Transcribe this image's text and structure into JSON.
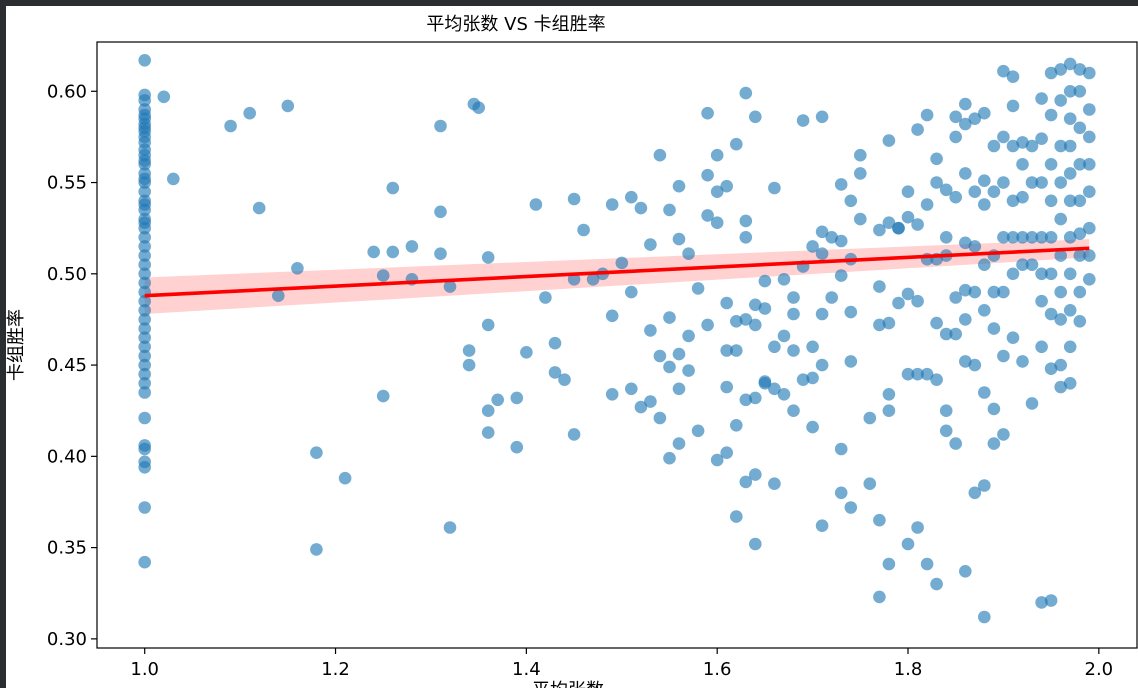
{
  "colors": {
    "points": "#1f77b4",
    "regression_line": "#ff0000",
    "confidence_band": "#ffb3b3",
    "axes": "#000000",
    "window_bg": "#2b2d30"
  },
  "chart_data": {
    "type": "scatter",
    "title": "平均张数 VS 卡组胜率",
    "xlabel": "平均张数",
    "ylabel": "卡组胜率",
    "xlim": [
      0.95,
      2.04
    ],
    "ylim": [
      0.295,
      0.627
    ],
    "x_ticks": [
      "1.0",
      "1.2",
      "1.4",
      "1.6",
      "1.8",
      "2.0"
    ],
    "y_ticks": [
      "0.30",
      "0.35",
      "0.40",
      "0.45",
      "0.50",
      "0.55",
      "0.60"
    ],
    "grid": false,
    "legend": "none",
    "regression": {
      "x": [
        1.0,
        1.99
      ],
      "y": [
        0.488,
        0.514
      ],
      "ci_lower": [
        0.478,
        0.509
      ],
      "ci_upper": [
        0.498,
        0.519
      ]
    },
    "points": {
      "x": [
        1.0,
        1.0,
        1.0,
        1.0,
        1.0,
        1.0,
        1.0,
        1.0,
        1.0,
        1.0,
        1.0,
        1.0,
        1.0,
        1.0,
        1.0,
        1.0,
        1.0,
        1.0,
        1.0,
        1.0,
        1.0,
        1.0,
        1.0,
        1.0,
        1.0,
        1.0,
        1.0,
        1.0,
        1.0,
        1.0,
        1.0,
        1.0,
        1.0,
        1.0,
        1.0,
        1.0,
        1.0,
        1.0,
        1.0,
        1.0,
        1.0,
        1.0,
        1.0,
        1.0,
        1.0,
        1.0,
        1.0,
        1.0,
        1.0,
        1.0,
        1.02,
        1.03,
        1.09,
        1.11,
        1.12,
        1.14,
        1.15,
        1.16,
        1.18,
        1.18,
        1.21,
        1.24,
        1.25,
        1.25,
        1.26,
        1.26,
        1.28,
        1.28,
        1.31,
        1.31,
        1.31,
        1.32,
        1.32,
        1.34,
        1.34,
        1.345,
        1.35,
        1.36,
        1.36,
        1.36,
        1.36,
        1.37,
        1.39,
        1.39,
        1.4,
        1.41,
        1.42,
        1.43,
        1.43,
        1.44,
        1.45,
        1.45,
        1.45,
        1.46,
        1.47,
        1.48,
        1.49,
        1.49,
        1.49,
        1.5,
        1.51,
        1.51,
        1.51,
        1.52,
        1.52,
        1.53,
        1.53,
        1.53,
        1.54,
        1.54,
        1.54,
        1.55,
        1.55,
        1.55,
        1.55,
        1.56,
        1.56,
        1.56,
        1.56,
        1.56,
        1.57,
        1.57,
        1.57,
        1.58,
        1.58,
        1.59,
        1.59,
        1.59,
        1.59,
        1.6,
        1.6,
        1.6,
        1.6,
        1.61,
        1.61,
        1.61,
        1.61,
        1.61,
        1.62,
        1.62,
        1.62,
        1.62,
        1.62,
        1.63,
        1.63,
        1.63,
        1.63,
        1.63,
        1.63,
        1.64,
        1.64,
        1.64,
        1.64,
        1.64,
        1.64,
        1.65,
        1.65,
        1.65,
        1.65,
        1.66,
        1.66,
        1.66,
        1.66,
        1.67,
        1.67,
        1.67,
        1.68,
        1.68,
        1.68,
        1.68,
        1.69,
        1.69,
        1.69,
        1.7,
        1.7,
        1.7,
        1.7,
        1.71,
        1.71,
        1.71,
        1.71,
        1.71,
        1.71,
        1.72,
        1.72,
        1.73,
        1.73,
        1.73,
        1.73,
        1.73,
        1.74,
        1.74,
        1.74,
        1.74,
        1.74,
        1.75,
        1.75,
        1.75,
        1.76,
        1.76,
        1.77,
        1.77,
        1.77,
        1.77,
        1.77,
        1.78,
        1.78,
        1.78,
        1.78,
        1.78,
        1.78,
        1.79,
        1.79,
        1.79,
        1.8,
        1.8,
        1.8,
        1.8,
        1.8,
        1.81,
        1.81,
        1.81,
        1.81,
        1.81,
        1.82,
        1.82,
        1.82,
        1.82,
        1.82,
        1.83,
        1.83,
        1.83,
        1.83,
        1.83,
        1.83,
        1.84,
        1.84,
        1.84,
        1.84,
        1.84,
        1.84,
        1.85,
        1.85,
        1.85,
        1.85,
        1.85,
        1.85,
        1.86,
        1.86,
        1.86,
        1.86,
        1.86,
        1.86,
        1.86,
        1.86,
        1.87,
        1.87,
        1.87,
        1.87,
        1.87,
        1.87,
        1.88,
        1.88,
        1.88,
        1.88,
        1.88,
        1.88,
        1.88,
        1.88,
        1.89,
        1.89,
        1.89,
        1.89,
        1.89,
        1.89,
        1.89,
        1.9,
        1.9,
        1.9,
        1.9,
        1.9,
        1.9,
        1.9,
        1.91,
        1.91,
        1.91,
        1.91,
        1.91,
        1.91,
        1.91,
        1.92,
        1.92,
        1.92,
        1.92,
        1.92,
        1.92,
        1.93,
        1.93,
        1.93,
        1.93,
        1.93,
        1.94,
        1.94,
        1.94,
        1.94,
        1.94,
        1.94,
        1.94,
        1.94,
        1.95,
        1.95,
        1.95,
        1.95,
        1.95,
        1.95,
        1.95,
        1.95,
        1.95,
        1.96,
        1.96,
        1.96,
        1.96,
        1.96,
        1.96,
        1.96,
        1.96,
        1.96,
        1.96,
        1.97,
        1.97,
        1.97,
        1.97,
        1.97,
        1.97,
        1.97,
        1.97,
        1.97,
        1.97,
        1.97,
        1.98,
        1.98,
        1.98,
        1.98,
        1.98,
        1.98,
        1.98,
        1.98,
        1.98,
        1.99,
        1.99,
        1.99,
        1.99,
        1.99,
        1.99,
        1.99,
        1.99
      ],
      "y": [
        0.617,
        0.598,
        0.595,
        0.59,
        0.585,
        0.58,
        0.575,
        0.568,
        0.565,
        0.56,
        0.555,
        0.55,
        0.545,
        0.54,
        0.535,
        0.53,
        0.525,
        0.52,
        0.515,
        0.51,
        0.505,
        0.5,
        0.495,
        0.49,
        0.485,
        0.48,
        0.475,
        0.47,
        0.465,
        0.46,
        0.455,
        0.45,
        0.445,
        0.44,
        0.435,
        0.421,
        0.406,
        0.404,
        0.397,
        0.394,
        0.372,
        0.342,
        0.587,
        0.582,
        0.578,
        0.572,
        0.562,
        0.552,
        0.538,
        0.528,
        0.597,
        0.552,
        0.581,
        0.588,
        0.536,
        0.488,
        0.592,
        0.503,
        0.402,
        0.349,
        0.388,
        0.512,
        0.433,
        0.499,
        0.512,
        0.547,
        0.515,
        0.497,
        0.581,
        0.534,
        0.511,
        0.493,
        0.361,
        0.458,
        0.45,
        0.593,
        0.591,
        0.509,
        0.472,
        0.425,
        0.413,
        0.431,
        0.432,
        0.405,
        0.457,
        0.538,
        0.487,
        0.462,
        0.446,
        0.442,
        0.541,
        0.497,
        0.412,
        0.524,
        0.497,
        0.5,
        0.538,
        0.477,
        0.434,
        0.506,
        0.542,
        0.49,
        0.437,
        0.536,
        0.427,
        0.516,
        0.469,
        0.43,
        0.565,
        0.455,
        0.421,
        0.535,
        0.476,
        0.449,
        0.399,
        0.548,
        0.519,
        0.456,
        0.437,
        0.407,
        0.511,
        0.466,
        0.447,
        0.492,
        0.414,
        0.588,
        0.554,
        0.532,
        0.472,
        0.545,
        0.565,
        0.528,
        0.398,
        0.548,
        0.484,
        0.458,
        0.438,
        0.402,
        0.571,
        0.474,
        0.458,
        0.417,
        0.367,
        0.599,
        0.529,
        0.52,
        0.475,
        0.431,
        0.386,
        0.586,
        0.483,
        0.472,
        0.432,
        0.39,
        0.352,
        0.496,
        0.481,
        0.441,
        0.44,
        0.547,
        0.46,
        0.437,
        0.385,
        0.497,
        0.466,
        0.434,
        0.487,
        0.478,
        0.458,
        0.425,
        0.584,
        0.504,
        0.442,
        0.515,
        0.46,
        0.443,
        0.416,
        0.586,
        0.523,
        0.511,
        0.478,
        0.45,
        0.362,
        0.52,
        0.487,
        0.549,
        0.518,
        0.499,
        0.404,
        0.38,
        0.54,
        0.508,
        0.479,
        0.452,
        0.372,
        0.565,
        0.555,
        0.53,
        0.421,
        0.385,
        0.524,
        0.493,
        0.472,
        0.365,
        0.323,
        0.573,
        0.528,
        0.473,
        0.434,
        0.425,
        0.341,
        0.525,
        0.525,
        0.484,
        0.545,
        0.531,
        0.489,
        0.445,
        0.352,
        0.579,
        0.527,
        0.485,
        0.445,
        0.361,
        0.587,
        0.538,
        0.508,
        0.445,
        0.341,
        0.563,
        0.55,
        0.508,
        0.473,
        0.442,
        0.33,
        0.546,
        0.52,
        0.51,
        0.467,
        0.425,
        0.414,
        0.586,
        0.575,
        0.542,
        0.487,
        0.467,
        0.407,
        0.593,
        0.582,
        0.555,
        0.517,
        0.491,
        0.475,
        0.452,
        0.337,
        0.585,
        0.545,
        0.515,
        0.49,
        0.45,
        0.38,
        0.588,
        0.551,
        0.538,
        0.505,
        0.48,
        0.435,
        0.384,
        0.312,
        0.57,
        0.545,
        0.51,
        0.49,
        0.47,
        0.426,
        0.407,
        0.611,
        0.575,
        0.55,
        0.52,
        0.49,
        0.455,
        0.412,
        0.608,
        0.592,
        0.57,
        0.54,
        0.52,
        0.5,
        0.465,
        0.572,
        0.56,
        0.542,
        0.52,
        0.505,
        0.452,
        0.57,
        0.55,
        0.52,
        0.505,
        0.429,
        0.596,
        0.574,
        0.55,
        0.52,
        0.5,
        0.485,
        0.46,
        0.32,
        0.61,
        0.587,
        0.56,
        0.54,
        0.52,
        0.5,
        0.478,
        0.448,
        0.321,
        0.612,
        0.595,
        0.57,
        0.55,
        0.53,
        0.51,
        0.49,
        0.475,
        0.45,
        0.438,
        0.615,
        0.6,
        0.585,
        0.57,
        0.555,
        0.54,
        0.52,
        0.5,
        0.48,
        0.46,
        0.44,
        0.612,
        0.6,
        0.58,
        0.56,
        0.54,
        0.522,
        0.51,
        0.49,
        0.474,
        0.61,
        0.59,
        0.575,
        0.56,
        0.545,
        0.525,
        0.51,
        0.497
      ]
    }
  }
}
